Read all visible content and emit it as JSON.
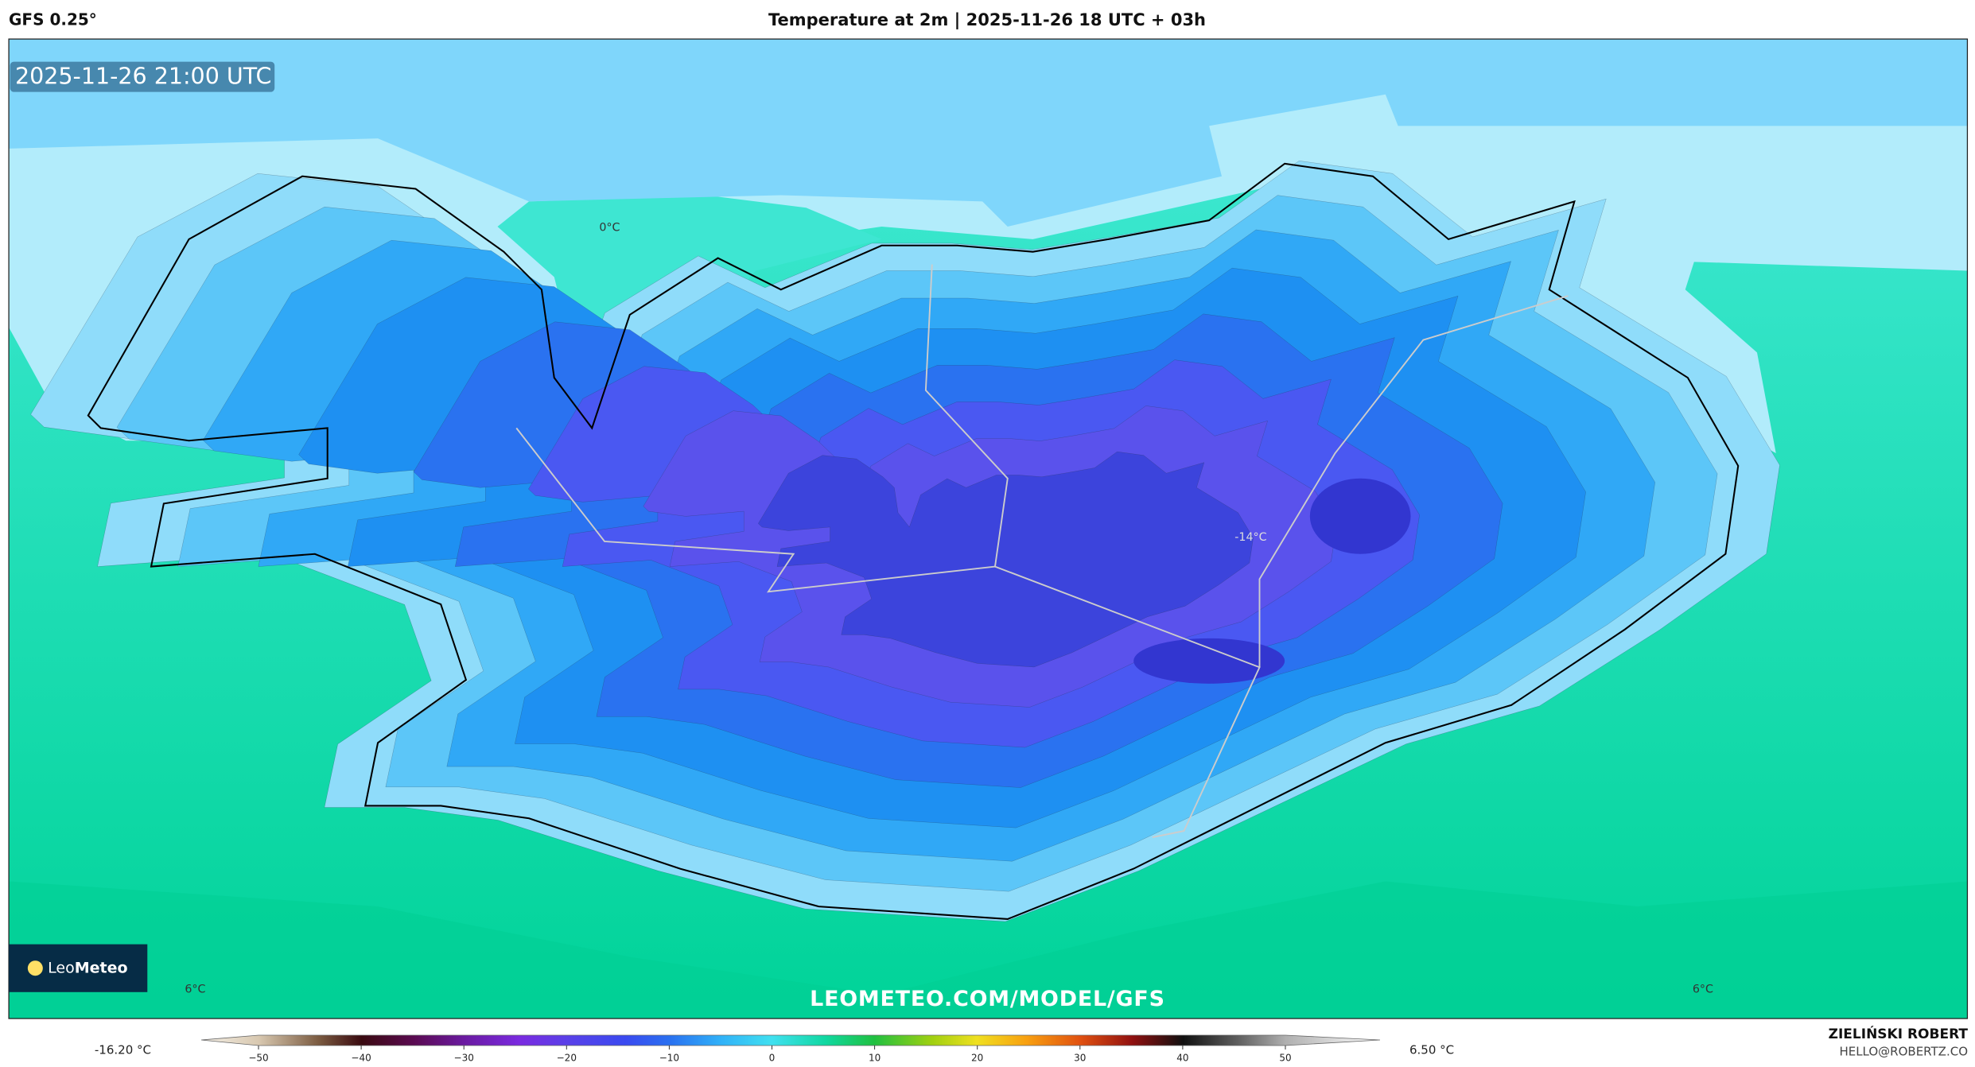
{
  "header": {
    "model": "GFS 0.25°",
    "title": "Temperature at 2m | 2025-11-26 18 UTC + 03h"
  },
  "map": {
    "valid_time": "2025-11-26 21:00 UTC",
    "contour_labels": [
      "0°C",
      "-14°C",
      "6°C",
      "6°C"
    ],
    "logo": {
      "light": "Leo",
      "bold": "Meteo"
    },
    "watermark": "LEOMETEO.COM/MODEL/GFS"
  },
  "colorbar": {
    "min_label": "-16.20 °C",
    "max_label": "6.50 °C",
    "ticks": [
      {
        "value": -50,
        "label": "−50"
      },
      {
        "value": -40,
        "label": "−40"
      },
      {
        "value": -30,
        "label": "−30"
      },
      {
        "value": -20,
        "label": "−20"
      },
      {
        "value": -10,
        "label": "−10"
      },
      0,
      10,
      20,
      30,
      40,
      50
    ]
  },
  "credit": {
    "name": "ZIELIŃSKI ROBERT",
    "email": "HELLO@ROBERTZ.CO"
  }
}
